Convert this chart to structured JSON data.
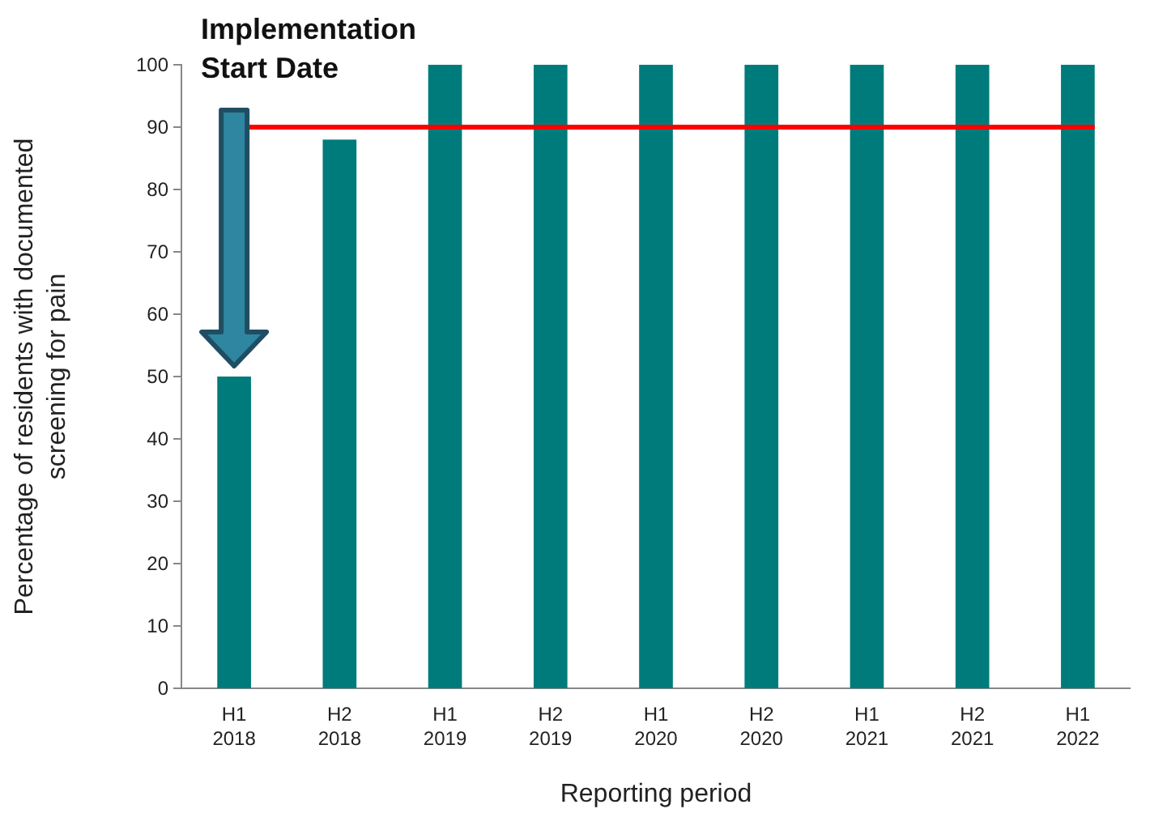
{
  "chart_data": {
    "type": "bar",
    "xlabel": "Reporting period",
    "ylabel": "Percentage of residents with documented screening for pain",
    "categories": [
      "H1 2018",
      "H2 2018",
      "H1 2019",
      "H2 2019",
      "H1 2020",
      "H2 2020",
      "H1 2021",
      "H2 2021",
      "H1 2022"
    ],
    "values": [
      50,
      88,
      100,
      100,
      100,
      100,
      100,
      100,
      100
    ],
    "color": "#007b7b",
    "ylim": [
      0,
      100
    ],
    "yticks": [
      0,
      10,
      20,
      30,
      40,
      50,
      60,
      70,
      80,
      90,
      100
    ],
    "grid": false,
    "ref_lines": [
      {
        "axis": "y",
        "value": 90,
        "color": "#ff0000"
      }
    ],
    "annotations": [
      "Implementation Start Date"
    ]
  }
}
